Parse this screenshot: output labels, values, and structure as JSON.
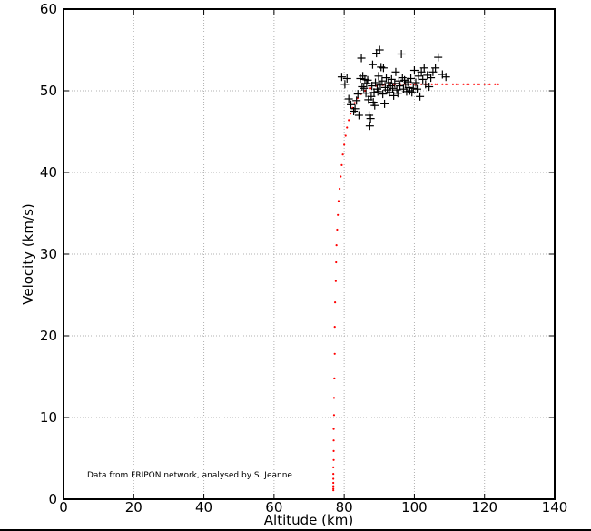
{
  "chart_data": {
    "type": "scatter",
    "title": "",
    "xlabel": "Altitude (km)",
    "ylabel": "Velocity (km/s)",
    "xlim": [
      0,
      140
    ],
    "ylim": [
      0,
      60
    ],
    "xticks": [
      0,
      20,
      40,
      60,
      80,
      100,
      120,
      140
    ],
    "yticks": [
      0,
      10,
      20,
      30,
      40,
      50,
      60
    ],
    "grid": true,
    "annotation": "Data from FRIPON network, analysed by S. Jeanne",
    "colors": {
      "observed": "#000000",
      "model": "#ff0000",
      "grid": "#b0b0b0"
    },
    "series": [
      {
        "marker": "plus",
        "points": [
          [
            79.3,
            51.7
          ],
          [
            80.2,
            50.8
          ],
          [
            80.8,
            51.5
          ],
          [
            81.3,
            49.0
          ],
          [
            81.9,
            48.3
          ],
          [
            82.7,
            47.5
          ],
          [
            83.1,
            47.8
          ],
          [
            83.5,
            48.8
          ],
          [
            83.9,
            49.6
          ],
          [
            84.2,
            47.0
          ],
          [
            84.6,
            51.5
          ],
          [
            84.9,
            54.0
          ],
          [
            85.1,
            50.5
          ],
          [
            85.3,
            51.8
          ],
          [
            85.6,
            50.3
          ],
          [
            85.9,
            51.4
          ],
          [
            86.2,
            49.7
          ],
          [
            86.4,
            50.9
          ],
          [
            86.7,
            51.3
          ],
          [
            86.9,
            48.9
          ],
          [
            87.1,
            47.0
          ],
          [
            87.3,
            45.7
          ],
          [
            87.5,
            46.6
          ],
          [
            87.7,
            49.3
          ],
          [
            87.9,
            50.6
          ],
          [
            88.1,
            53.2
          ],
          [
            88.3,
            48.6
          ],
          [
            88.5,
            49.8
          ],
          [
            88.7,
            48.2
          ],
          [
            88.9,
            51.0
          ],
          [
            89.2,
            54.6
          ],
          [
            89.4,
            50.2
          ],
          [
            89.6,
            49.9
          ],
          [
            89.8,
            51.8
          ],
          [
            90.1,
            55.0
          ],
          [
            90.3,
            50.7
          ],
          [
            90.5,
            52.9
          ],
          [
            90.8,
            51.2
          ],
          [
            91.0,
            49.6
          ],
          [
            91.2,
            52.8
          ],
          [
            91.5,
            48.4
          ],
          [
            91.7,
            50.4
          ],
          [
            92.0,
            51.6
          ],
          [
            92.3,
            50.1
          ],
          [
            92.6,
            51.0
          ],
          [
            92.9,
            49.8
          ],
          [
            93.2,
            50.6
          ],
          [
            93.5,
            51.4
          ],
          [
            93.8,
            50.3
          ],
          [
            94.1,
            49.4
          ],
          [
            94.4,
            50.9
          ],
          [
            94.7,
            52.3
          ],
          [
            95.0,
            50.1
          ],
          [
            95.3,
            49.7
          ],
          [
            95.6,
            51.2
          ],
          [
            95.9,
            50.6
          ],
          [
            96.3,
            54.5
          ],
          [
            96.6,
            51.6
          ],
          [
            96.9,
            50.2
          ],
          [
            97.2,
            51.3
          ],
          [
            97.5,
            50.8
          ],
          [
            97.8,
            49.9
          ],
          [
            98.1,
            51.1
          ],
          [
            98.4,
            50.4
          ],
          [
            98.7,
            50.0
          ],
          [
            99.0,
            51.5
          ],
          [
            99.3,
            49.8
          ],
          [
            99.7,
            50.3
          ],
          [
            100.0,
            52.5
          ],
          [
            100.4,
            51.0
          ],
          [
            100.8,
            50.2
          ],
          [
            101.2,
            51.8
          ],
          [
            101.6,
            49.3
          ],
          [
            102.0,
            52.3
          ],
          [
            102.4,
            51.4
          ],
          [
            102.8,
            52.8
          ],
          [
            103.2,
            50.8
          ],
          [
            103.7,
            51.9
          ],
          [
            104.2,
            50.5
          ],
          [
            104.7,
            51.6
          ],
          [
            105.3,
            52.3
          ],
          [
            106.0,
            52.8
          ],
          [
            106.8,
            54.1
          ],
          [
            108.0,
            52.0
          ],
          [
            109.0,
            51.7
          ]
        ]
      },
      {
        "marker": "dot",
        "points": [
          [
            123.9,
            50.8
          ],
          [
            121.0,
            50.8
          ],
          [
            118.0,
            50.8
          ],
          [
            115.0,
            50.8
          ],
          [
            112.0,
            50.8
          ],
          [
            109.0,
            50.8
          ],
          [
            106.0,
            50.8
          ],
          [
            103.0,
            50.8
          ],
          [
            100.0,
            50.8
          ],
          [
            97.0,
            50.8
          ],
          [
            94.0,
            50.8
          ],
          [
            91.0,
            50.7
          ],
          [
            89.0,
            50.6
          ],
          [
            87.5,
            50.3
          ],
          [
            86.0,
            50.0
          ],
          [
            84.8,
            49.6
          ],
          [
            83.8,
            49.1
          ],
          [
            83.0,
            48.5
          ],
          [
            82.4,
            47.9
          ],
          [
            81.8,
            47.2
          ],
          [
            81.3,
            46.4
          ],
          [
            80.8,
            45.5
          ],
          [
            80.4,
            44.5
          ],
          [
            80.0,
            43.4
          ],
          [
            79.6,
            42.2
          ],
          [
            79.3,
            40.9
          ],
          [
            79.0,
            39.5
          ],
          [
            78.7,
            38.0
          ],
          [
            78.4,
            36.5
          ],
          [
            78.2,
            34.8
          ],
          [
            78.0,
            33.0
          ],
          [
            77.8,
            31.1
          ],
          [
            77.7,
            29.0
          ],
          [
            77.6,
            26.7
          ],
          [
            77.4,
            24.1
          ],
          [
            77.3,
            21.1
          ],
          [
            77.3,
            17.8
          ],
          [
            77.2,
            14.8
          ],
          [
            77.1,
            12.4
          ],
          [
            77.1,
            10.3
          ],
          [
            77.0,
            8.6
          ],
          [
            77.0,
            7.2
          ],
          [
            77.0,
            5.9
          ],
          [
            77.0,
            4.8
          ],
          [
            76.9,
            3.9
          ],
          [
            76.9,
            3.1
          ],
          [
            76.9,
            2.5
          ],
          [
            76.9,
            2.0
          ],
          [
            76.9,
            1.6
          ],
          [
            76.9,
            1.3
          ],
          [
            76.9,
            1.1
          ]
        ]
      }
    ]
  }
}
